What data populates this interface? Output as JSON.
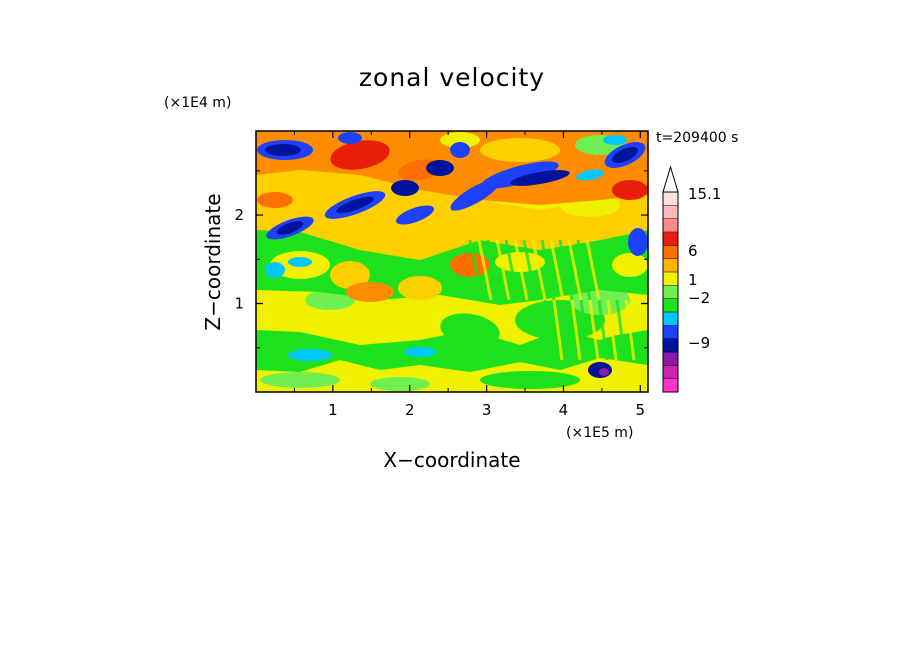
{
  "chart_data": {
    "type": "heatmap",
    "title": "zonal velocity",
    "xlabel": "X−coordinate",
    "ylabel": "Z−coordinate",
    "x_unit": "(×1E5 m)",
    "y_unit": "(×1E4 m)",
    "time_label": "t=209400 s",
    "xlim": [
      0,
      5.1
    ],
    "ylim": [
      0,
      2.95
    ],
    "x_ticks": [
      "1",
      "2",
      "3",
      "4",
      "5"
    ],
    "y_ticks": [
      "1",
      "2"
    ],
    "colorbar": {
      "labels": [
        "15.1",
        "6",
        "1",
        "−2",
        "−9"
      ],
      "colors": [
        "#ff33c8",
        "#d020b0",
        "#8a1aa8",
        "#00139c",
        "#1e40ff",
        "#00c8ff",
        "#1ee11e",
        "#70f050",
        "#f0f000",
        "#ffb400",
        "#ff6e00",
        "#e61e0a",
        "#ff8888",
        "#ffbbbb",
        "#ffe0e0"
      ]
    },
    "field_description": "2D contour-filled field of zonal velocity over X (0-5.1e5 m) and Z (0-2.95e4 m)"
  }
}
